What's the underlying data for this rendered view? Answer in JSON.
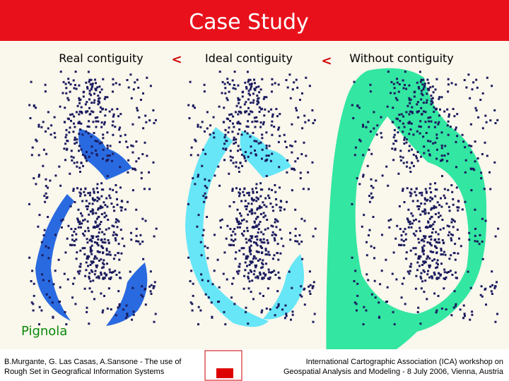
{
  "header": {
    "title": "Case Study"
  },
  "labels": {
    "real": "Real contiguity",
    "sep1": "<",
    "ideal": "Ideal contiguity",
    "sep2": "<",
    "without": "Without contiguity"
  },
  "place": "Pignola",
  "footer": {
    "left": [
      "B.Murgante, G. Las Casas, A.Sansone - The use of",
      "Rough Set in Geografical Information Systems"
    ],
    "right": [
      "International Cartographic Association (ICA) workshop  on",
      "Geospatial Analysis and Modeling - 8 July 2006, Vienna, Austria"
    ]
  }
}
